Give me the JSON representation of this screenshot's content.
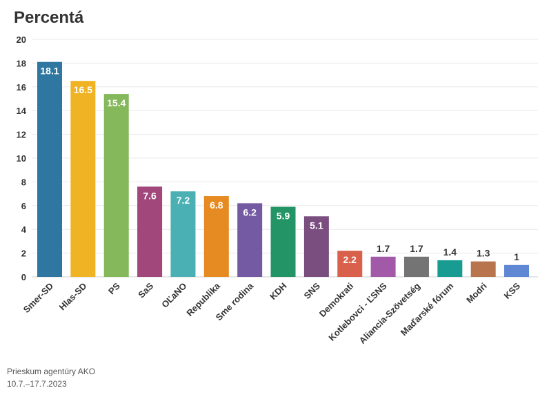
{
  "chart_data": {
    "type": "bar",
    "title": "Percentá",
    "categories": [
      "Smer-SD",
      "Hlas-SD",
      "PS",
      "SaS",
      "OĽaNO",
      "Republika",
      "Sme rodina",
      "KDH",
      "SNS",
      "Demokrati",
      "Kotlebovci - ĽSNS",
      "Aliancia-Szövetség",
      "Maďarské fórum",
      "Modri",
      "KSS"
    ],
    "values": [
      18.1,
      16.5,
      15.4,
      7.6,
      7.2,
      6.8,
      6.2,
      5.9,
      5.1,
      2.2,
      1.7,
      1.7,
      1.4,
      1.3,
      1
    ],
    "colors": [
      "#2f77a1",
      "#f0b323",
      "#84b85a",
      "#a1477b",
      "#4bb0b3",
      "#e68a22",
      "#7459a3",
      "#239466",
      "#7a4f80",
      "#d9604b",
      "#a25aa8",
      "#747474",
      "#189b90",
      "#b8744d",
      "#5f87d4"
    ],
    "ylim": [
      0,
      20
    ],
    "yticks": [
      0,
      2,
      4,
      6,
      8,
      10,
      12,
      14,
      16,
      18,
      20
    ],
    "grid": true,
    "xlabel": "",
    "ylabel": ""
  },
  "footer": {
    "source": "Prieskum agentúry AKO",
    "date": "10.7.–17.7.2023"
  }
}
